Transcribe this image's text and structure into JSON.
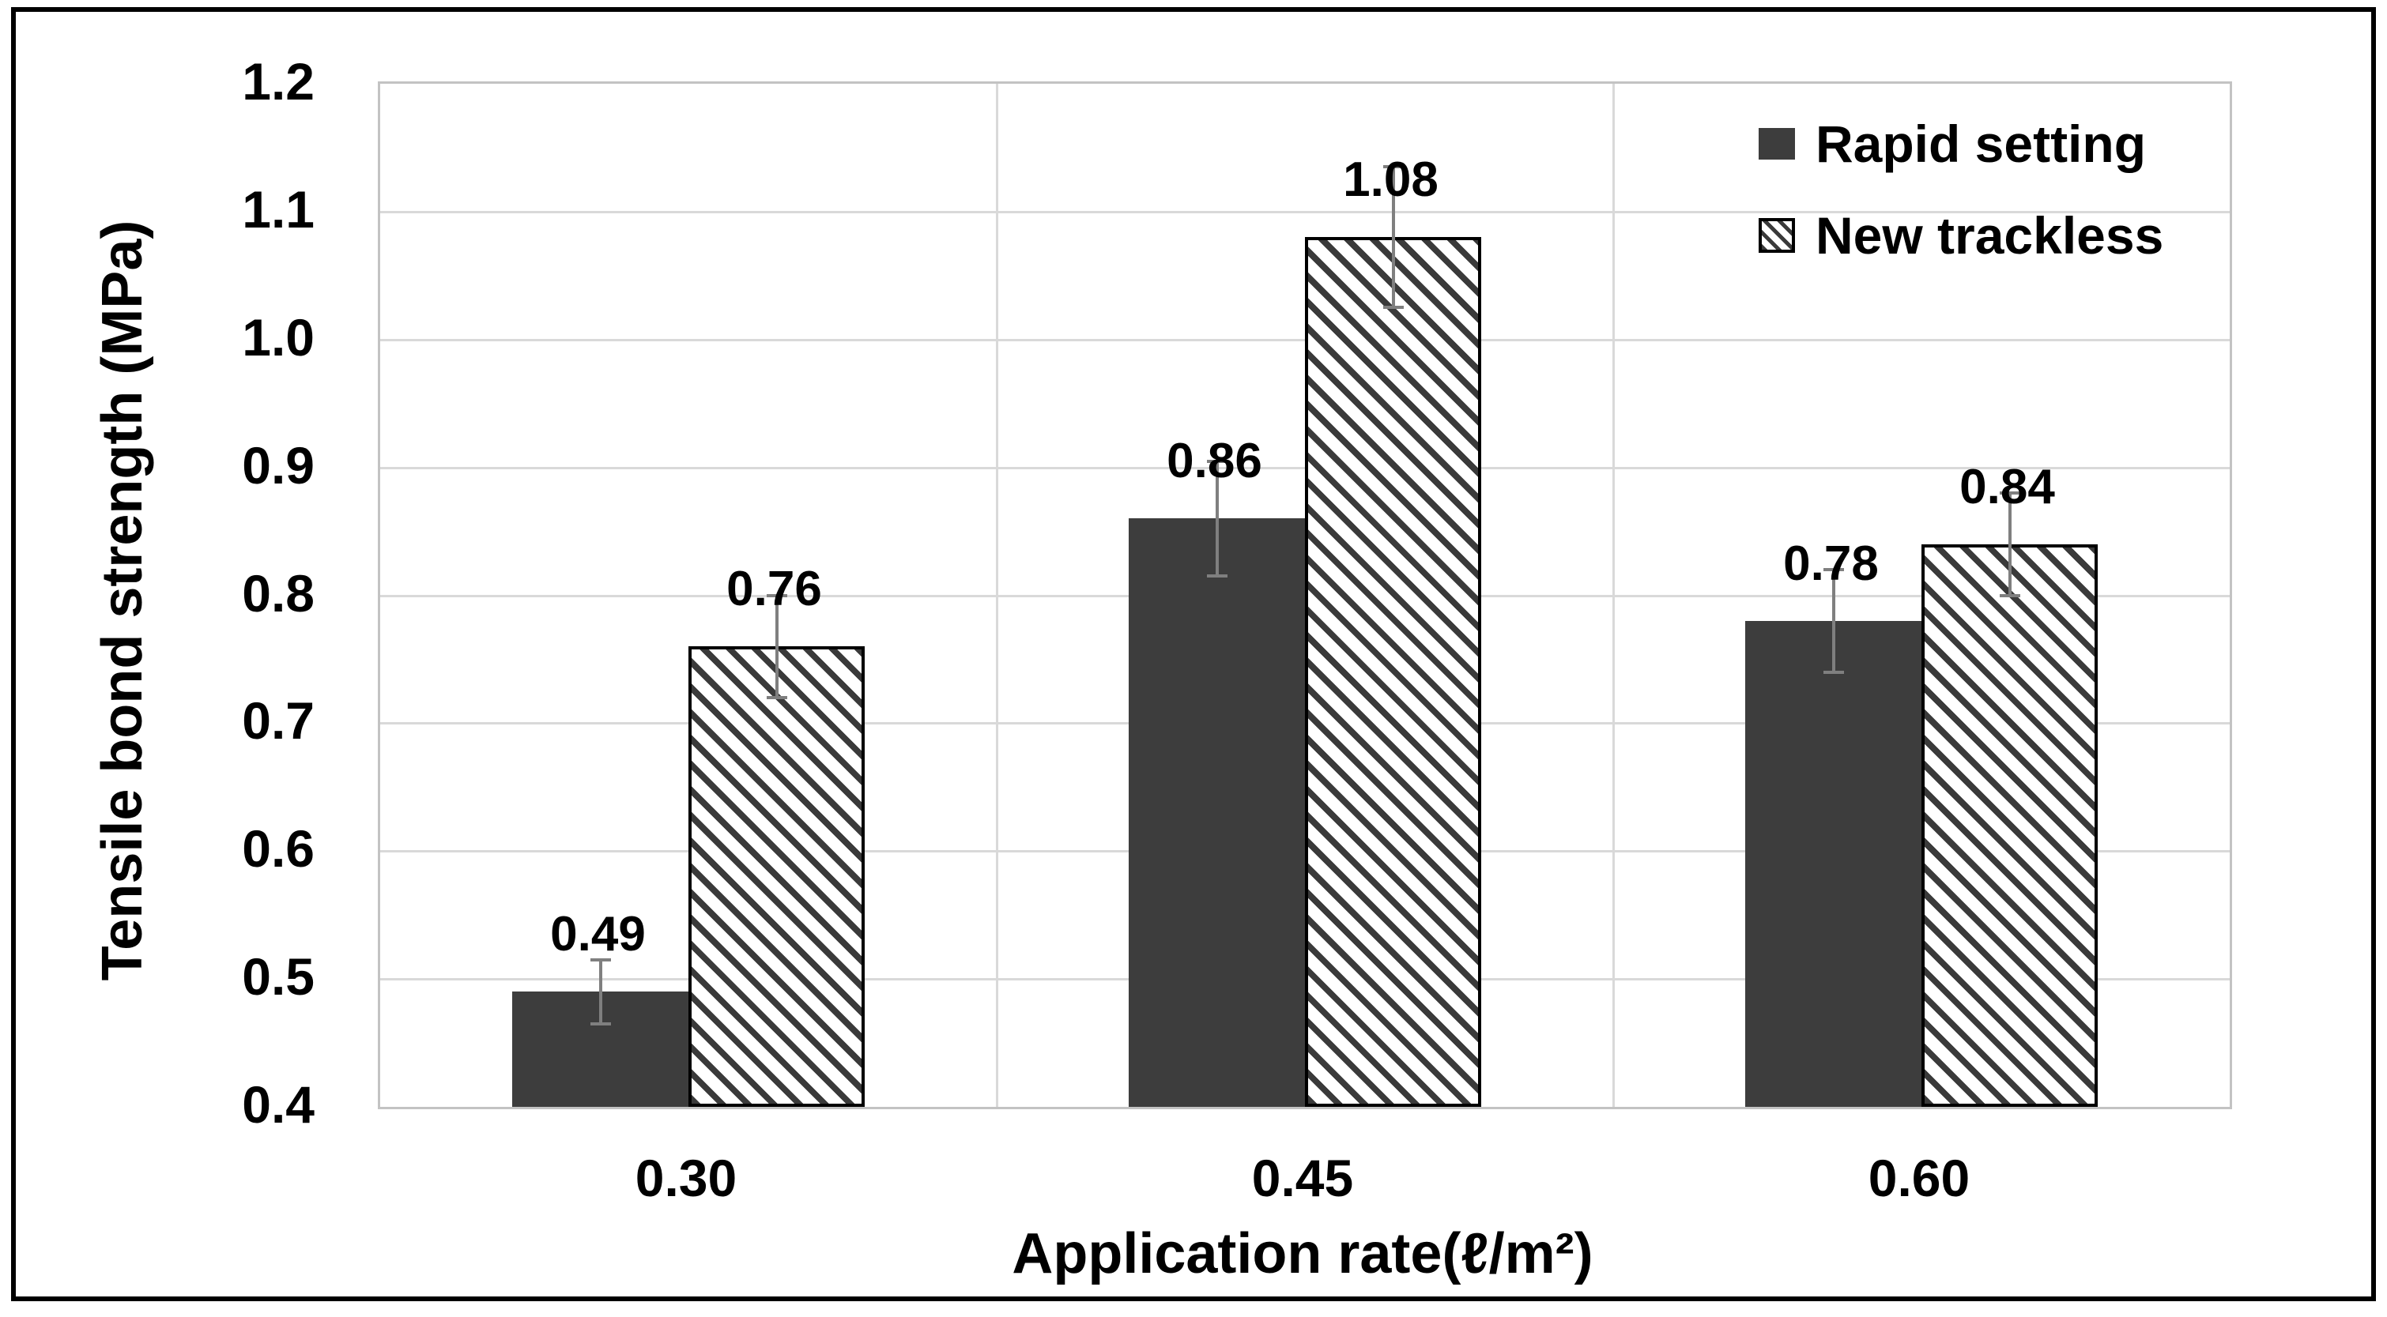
{
  "chart_data": {
    "type": "bar",
    "title": "",
    "categories": [
      "0.30",
      "0.45",
      "0.60"
    ],
    "series": [
      {
        "name": "Rapid setting",
        "pattern": "solid",
        "fill": "#3D3D3D",
        "values": [
          0.49,
          0.86,
          0.78
        ],
        "labels": [
          "0.49",
          "0.86",
          "0.78"
        ],
        "errors": [
          0.025,
          0.045,
          0.04
        ]
      },
      {
        "name": "New trackless",
        "pattern": "diagonal-hatch",
        "fill": "#FFFFFF",
        "hatch": "#3A3A3A",
        "values": [
          0.76,
          1.08,
          0.84
        ],
        "labels": [
          "0.76",
          "1.08",
          "0.84"
        ],
        "errors": [
          0.04,
          0.055,
          0.04
        ]
      }
    ],
    "xlabel": "Application rate(ℓ/m²)",
    "ylabel": "Tensile bond strength (MPa)",
    "ylim": [
      0.4,
      1.2
    ],
    "ytick_step": 0.1,
    "ytick_labels": [
      "1.2",
      "1.1",
      "1.0",
      "0.9",
      "0.8",
      "0.7",
      "0.6",
      "0.5",
      "0.4"
    ],
    "xtick_labels": [
      "0.30",
      "0.45",
      "0.60"
    ],
    "grid": "horizontal-major + vertical-category-boundaries",
    "legend": {
      "position": "top-right-inside",
      "entries": [
        "Rapid setting",
        "New trackless"
      ]
    },
    "error_bars": "plus-minus with caps"
  },
  "colors": {
    "bar_solid": "#3D3D3D",
    "hatch_stripe": "#3A3A3A",
    "gridline": "#D9D9D9",
    "plot_border": "#C3C3C3",
    "error_bar": "#7F7F7F",
    "frame": "#000000",
    "background": "#FFFFFF",
    "text": "#000000"
  }
}
